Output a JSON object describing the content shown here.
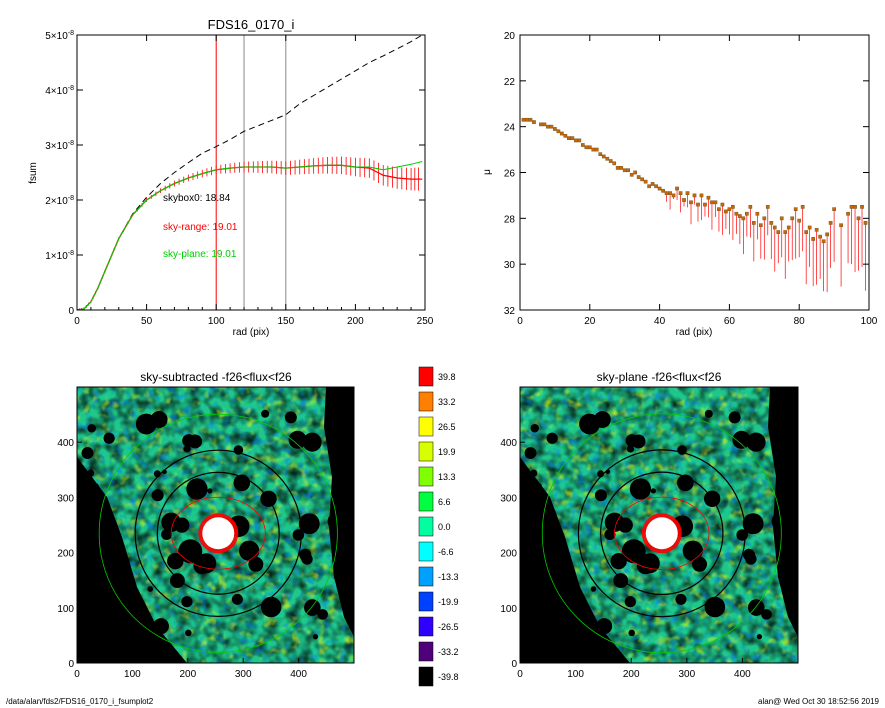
{
  "footer": {
    "path": "/data/alan/fds2/FDS16_0170_i_fsumplot2",
    "stamp": "alan@  Wed Oct 30 18:52:56 2019"
  },
  "colors": {
    "fsum_black": "#000000",
    "fsum_red": "#ff0000",
    "fsum_green": "#00cc00",
    "vline_red": "#ff0000",
    "vline_gray": "#888888"
  },
  "chart_data": [
    {
      "id": "fsum",
      "type": "line",
      "title": "FDS16_0170_i",
      "xlabel": "rad (pix)",
      "ylabel": "fsum",
      "xlim": [
        0,
        250
      ],
      "ylim": [
        0,
        5e-08
      ],
      "xticks": [
        "0",
        "50",
        "100",
        "150",
        "200",
        "250"
      ],
      "yticks": [
        {
          "value": 0,
          "mant": "0",
          "exp": ""
        },
        {
          "value": 1e-08,
          "mant": "1×10",
          "exp": "-8"
        },
        {
          "value": 2e-08,
          "mant": "2×10",
          "exp": "-8"
        },
        {
          "value": 3e-08,
          "mant": "3×10",
          "exp": "-8"
        },
        {
          "value": 4e-08,
          "mant": "4×10",
          "exp": "-8"
        },
        {
          "value": 5e-08,
          "mant": "5×10",
          "exp": "-8"
        }
      ],
      "vlines": [
        100,
        120,
        150
      ],
      "annotations": [
        {
          "text": "skybox0: 18.84",
          "color": "#000000"
        },
        {
          "text": "sky-range: 19.01",
          "color": "#ff0000"
        },
        {
          "text": "sky-plane: 19.01",
          "color": "#00cc00"
        }
      ],
      "series": [
        {
          "style": "dashed",
          "color": "#000000",
          "x": [
            0,
            5,
            10,
            15,
            20,
            25,
            30,
            40,
            50,
            60,
            70,
            80,
            90,
            100,
            110,
            120,
            130,
            140,
            150,
            160,
            170,
            180,
            190,
            200,
            210,
            220,
            230,
            240,
            248
          ],
          "y": [
            0,
            2e-10,
            1.5e-09,
            4e-09,
            7e-09,
            1e-08,
            1.3e-08,
            1.75e-08,
            2.05e-08,
            2.3e-08,
            2.5e-08,
            2.68e-08,
            2.85e-08,
            2.97e-08,
            3.1e-08,
            3.25e-08,
            3.35e-08,
            3.45e-08,
            3.55e-08,
            3.75e-08,
            3.9e-08,
            4.05e-08,
            4.2e-08,
            4.35e-08,
            4.5e-08,
            4.62e-08,
            4.75e-08,
            4.88e-08,
            5e-08
          ]
        },
        {
          "style": "solid",
          "color": "#ff0000",
          "errorbars": true,
          "x": [
            0,
            5,
            10,
            15,
            20,
            25,
            30,
            40,
            50,
            60,
            70,
            80,
            90,
            100,
            110,
            120,
            130,
            140,
            150,
            160,
            170,
            180,
            190,
            200,
            210,
            220,
            230,
            240,
            248
          ],
          "y": [
            0,
            2e-10,
            1.5e-09,
            4e-09,
            7e-09,
            1e-08,
            1.3e-08,
            1.73e-08,
            2e-08,
            2.17e-08,
            2.3e-08,
            2.4e-08,
            2.48e-08,
            2.55e-08,
            2.58e-08,
            2.6e-08,
            2.6e-08,
            2.6e-08,
            2.58e-08,
            2.6e-08,
            2.62e-08,
            2.63e-08,
            2.63e-08,
            2.6e-08,
            2.58e-08,
            2.45e-08,
            2.4e-08,
            2.38e-08,
            2.38e-08
          ]
        },
        {
          "style": "solid",
          "color": "#00cc00",
          "x": [
            0,
            5,
            10,
            15,
            20,
            25,
            30,
            40,
            50,
            60,
            70,
            80,
            90,
            100,
            110,
            120,
            130,
            140,
            150,
            160,
            170,
            180,
            190,
            200,
            210,
            220,
            230,
            240,
            248
          ],
          "y": [
            0,
            2e-10,
            1.5e-09,
            4e-09,
            7e-09,
            1e-08,
            1.3e-08,
            1.73e-08,
            2e-08,
            2.17e-08,
            2.3e-08,
            2.4e-08,
            2.48e-08,
            2.55e-08,
            2.58e-08,
            2.6e-08,
            2.6e-08,
            2.6e-08,
            2.58e-08,
            2.6e-08,
            2.62e-08,
            2.63e-08,
            2.63e-08,
            2.6e-08,
            2.6e-08,
            2.55e-08,
            2.6e-08,
            2.65e-08,
            2.7e-08
          ]
        }
      ]
    },
    {
      "id": "mu",
      "type": "scatter",
      "xlabel": "rad (pix)",
      "ylabel": "μ",
      "xlim": [
        0,
        100
      ],
      "ylim": [
        32,
        20
      ],
      "xticks": [
        "0",
        "20",
        "40",
        "60",
        "80",
        "100"
      ],
      "yticks": [
        "20",
        "22",
        "24",
        "26",
        "28",
        "30",
        "32"
      ],
      "x": [
        1,
        2,
        3,
        4,
        6,
        7,
        8,
        9,
        10,
        11,
        12,
        13,
        14,
        15,
        16,
        17,
        18,
        19,
        20,
        21,
        22,
        23,
        24,
        25,
        26,
        27,
        28,
        29,
        30,
        31,
        32,
        33,
        34,
        35,
        36,
        37,
        38,
        39,
        40,
        41,
        42,
        43,
        44,
        45,
        46,
        47,
        48,
        49,
        50,
        51,
        52,
        53,
        54,
        55,
        56,
        57,
        58,
        59,
        60,
        61,
        62,
        63,
        64,
        65,
        66,
        67,
        68,
        69,
        70,
        71,
        72,
        73,
        74,
        75,
        76,
        77,
        78,
        79,
        80,
        81,
        82,
        83,
        84,
        85,
        86,
        87,
        88,
        89,
        90,
        92,
        94,
        95,
        96,
        97,
        98,
        99
      ],
      "y": [
        23.7,
        23.7,
        23.7,
        23.8,
        23.9,
        23.9,
        24.0,
        24.0,
        24.1,
        24.2,
        24.3,
        24.4,
        24.5,
        24.5,
        24.6,
        24.6,
        24.8,
        24.9,
        24.9,
        25.0,
        25.0,
        25.2,
        25.3,
        25.4,
        25.5,
        25.6,
        25.8,
        25.8,
        25.9,
        25.9,
        26.1,
        26.0,
        26.2,
        26.3,
        26.4,
        26.6,
        26.5,
        26.6,
        26.7,
        26.8,
        26.9,
        26.9,
        27.0,
        26.7,
        26.9,
        27.2,
        26.9,
        27.3,
        27.0,
        27.4,
        27.0,
        27.4,
        27.1,
        27.3,
        27.3,
        27.6,
        27.4,
        27.7,
        27.6,
        27.5,
        27.8,
        27.9,
        28.0,
        27.8,
        27.5,
        28.2,
        27.8,
        28.3,
        28.0,
        27.5,
        28.2,
        28.4,
        28.6,
        28.0,
        28.6,
        28.4,
        28.0,
        27.6,
        28.1,
        27.5,
        28.6,
        28.4,
        28.9,
        28.5,
        28.8,
        29.0,
        28.7,
        28.2,
        27.6,
        28.3,
        27.8,
        27.5,
        27.5,
        28.0,
        27.5,
        28.2
      ]
    },
    {
      "id": "map-left",
      "type": "heatmap",
      "title": "sky-subtracted -f26<flux<f26",
      "xlim": [
        0,
        500
      ],
      "ylim": [
        0,
        500
      ],
      "xticks": [
        "0",
        "100",
        "200",
        "300",
        "400"
      ],
      "yticks": [
        "0",
        "100",
        "200",
        "300",
        "400"
      ]
    },
    {
      "id": "map-right",
      "type": "heatmap",
      "title": "sky-plane -f26<flux<f26",
      "xlim": [
        0,
        500
      ],
      "ylim": [
        0,
        500
      ],
      "xticks": [
        "0",
        "100",
        "200",
        "300",
        "400"
      ],
      "yticks": [
        "0",
        "100",
        "200",
        "300",
        "400"
      ]
    }
  ],
  "colorbar": {
    "labels": [
      "39.8",
      "33.2",
      "26.5",
      "19.9",
      "13.3",
      "6.6",
      "0.0",
      "-6.6",
      "-13.3",
      "-19.9",
      "-26.5",
      "-33.2",
      "-39.8"
    ],
    "colors": [
      "#ff0000",
      "#ff8000",
      "#ffff00",
      "#d8ff00",
      "#80ff00",
      "#00ff40",
      "#00ffa0",
      "#00ffff",
      "#00a0ff",
      "#0040ff",
      "#3000ff",
      "#500078",
      "#000000"
    ]
  }
}
